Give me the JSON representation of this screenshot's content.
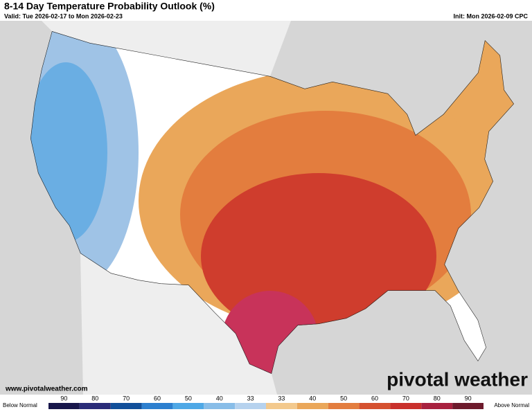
{
  "header": {
    "title": "8-14 Day Temperature Probability Outlook (%)",
    "valid": "Valid: Tue 2026-02-17 to Mon 2026-02-23",
    "init": "Init: Mon 2026-02-09 CPC"
  },
  "footer": {
    "url": "www.pivotalweather.com",
    "brand": "pivotal weather"
  },
  "legend": {
    "below_label": "Below Normal",
    "above_label": "Above Normal",
    "bins": [
      {
        "label": "90",
        "color": "#17164a"
      },
      {
        "label": "80",
        "color": "#2a2c78"
      },
      {
        "label": "70",
        "color": "#114f9a"
      },
      {
        "label": "60",
        "color": "#2c7fcf"
      },
      {
        "label": "50",
        "color": "#4ea8e6"
      },
      {
        "label": "40",
        "color": "#88bde8"
      },
      {
        "label": "33",
        "color": "#b6d2ee"
      },
      {
        "label": "33",
        "color": "#f3c98d"
      },
      {
        "label": "40",
        "color": "#eaa75a"
      },
      {
        "label": "50",
        "color": "#e37d3e"
      },
      {
        "label": "60",
        "color": "#d5512f"
      },
      {
        "label": "70",
        "color": "#c9302c"
      },
      {
        "label": "80",
        "color": "#a8213f"
      },
      {
        "label": "90",
        "color": "#6d1a2c"
      }
    ]
  }
}
